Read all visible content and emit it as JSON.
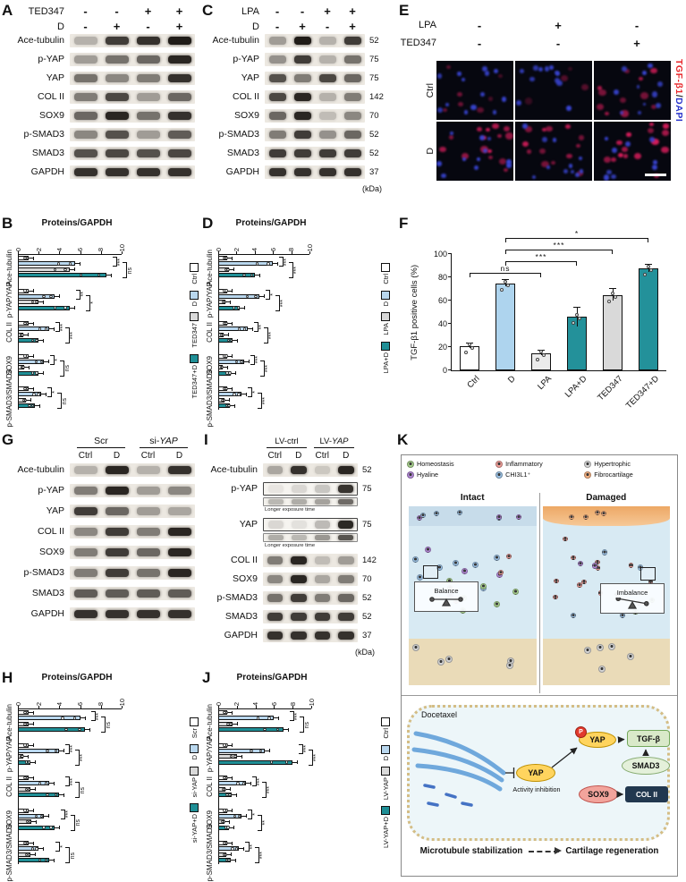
{
  "panel_labels": {
    "a": "A",
    "b": "B",
    "c": "C",
    "d": "D",
    "e": "E",
    "f": "F",
    "g": "G",
    "h": "H",
    "i": "I",
    "j": "J",
    "k": "K"
  },
  "blot_a": {
    "conditions": [
      {
        "name": "TED347",
        "values": [
          "-",
          "-",
          "+",
          "+"
        ]
      },
      {
        "name": "D",
        "values": [
          "-",
          "+",
          "-",
          "+"
        ]
      }
    ],
    "rows": [
      {
        "protein": "Ace-tubulin",
        "bands": [
          0.25,
          0.8,
          0.85,
          0.95
        ]
      },
      {
        "protein": "p-YAP",
        "bands": [
          0.35,
          0.55,
          0.6,
          0.9
        ]
      },
      {
        "protein": "YAP",
        "bands": [
          0.55,
          0.45,
          0.5,
          0.85
        ]
      },
      {
        "protein": "COL II",
        "bands": [
          0.5,
          0.75,
          0.35,
          0.6
        ]
      },
      {
        "protein": "SOX9",
        "bands": [
          0.6,
          0.9,
          0.55,
          0.85
        ]
      },
      {
        "protein": "p-SMAD3",
        "bands": [
          0.45,
          0.7,
          0.35,
          0.65
        ]
      },
      {
        "protein": "SMAD3",
        "bands": [
          0.7,
          0.75,
          0.7,
          0.75
        ]
      },
      {
        "protein": "GAPDH",
        "bands": [
          0.85,
          0.85,
          0.85,
          0.85
        ]
      }
    ]
  },
  "blot_c": {
    "conditions": [
      {
        "name": "LPA",
        "values": [
          "-",
          "-",
          "+",
          "+"
        ]
      },
      {
        "name": "D",
        "values": [
          "-",
          "+",
          "-",
          "+"
        ]
      }
    ],
    "rows": [
      {
        "protein": "Ace-tubulin",
        "bands": [
          0.35,
          0.95,
          0.25,
          0.8
        ]
      },
      {
        "protein": "p-YAP",
        "bands": [
          0.4,
          0.8,
          0.25,
          0.55
        ]
      },
      {
        "protein": "YAP",
        "bands": [
          0.7,
          0.5,
          0.75,
          0.6
        ]
      },
      {
        "protein": "COL II",
        "bands": [
          0.75,
          0.9,
          0.25,
          0.5
        ]
      },
      {
        "protein": "SOX9",
        "bands": [
          0.6,
          0.9,
          0.2,
          0.45
        ]
      },
      {
        "protein": "p-SMAD3",
        "bands": [
          0.5,
          0.8,
          0.4,
          0.6
        ]
      },
      {
        "protein": "SMAD3",
        "bands": [
          0.8,
          0.8,
          0.8,
          0.8
        ]
      },
      {
        "protein": "GAPDH",
        "bands": [
          0.85,
          0.85,
          0.85,
          0.85
        ]
      }
    ],
    "kda": [
      "52",
      "75",
      "75",
      "142",
      "70",
      "52",
      "52",
      "37"
    ],
    "kda_unit": "(kDa)"
  },
  "blot_g": {
    "groups": [
      {
        "name": "Scr"
      },
      {
        "prefix": "si-",
        "gene": "YAP"
      }
    ],
    "lanes": [
      "Ctrl",
      "D",
      "Ctrl",
      "D"
    ],
    "rows": [
      {
        "protein": "Ace-tubulin",
        "bands": [
          0.25,
          0.9,
          0.25,
          0.85
        ]
      },
      {
        "protein": "p-YAP",
        "bands": [
          0.5,
          0.9,
          0.35,
          0.45
        ]
      },
      {
        "protein": "YAP",
        "bands": [
          0.8,
          0.6,
          0.35,
          0.3
        ]
      },
      {
        "protein": "COL II",
        "bands": [
          0.45,
          0.8,
          0.5,
          0.9
        ]
      },
      {
        "protein": "SOX9",
        "bands": [
          0.5,
          0.8,
          0.6,
          0.9
        ]
      },
      {
        "protein": "p-SMAD3",
        "bands": [
          0.5,
          0.8,
          0.55,
          0.9
        ]
      },
      {
        "protein": "SMAD3",
        "bands": [
          0.65,
          0.65,
          0.65,
          0.65
        ]
      },
      {
        "protein": "GAPDH",
        "bands": [
          0.85,
          0.85,
          0.85,
          0.85
        ]
      }
    ]
  },
  "blot_i": {
    "groups": [
      {
        "name": "LV-ctrl"
      },
      {
        "prefix": "LV-",
        "gene": "YAP"
      }
    ],
    "lanes": [
      "Ctrl",
      "D",
      "Ctrl",
      "D"
    ],
    "rows": [
      {
        "protein": "Ace-tubulin",
        "bands": [
          0.3,
          0.85,
          0.15,
          0.9
        ]
      },
      {
        "protein": "p-YAP",
        "bands": [
          0.06,
          0.12,
          0.2,
          0.85
        ],
        "boxed": true,
        "sub": "Longer exposure time",
        "sub_bands": [
          0.25,
          0.3,
          0.35,
          0.6
        ]
      },
      {
        "protein": "YAP",
        "bands": [
          0.12,
          0.08,
          0.25,
          0.9
        ],
        "boxed": true,
        "sub": "Longer exposure time",
        "sub_bands": [
          0.3,
          0.25,
          0.4,
          0.7
        ]
      },
      {
        "protein": "COL II",
        "bands": [
          0.5,
          0.9,
          0.2,
          0.35
        ]
      },
      {
        "protein": "SOX9",
        "bands": [
          0.45,
          0.9,
          0.3,
          0.5
        ]
      },
      {
        "protein": "p-SMAD3",
        "bands": [
          0.55,
          0.8,
          0.5,
          0.6
        ]
      },
      {
        "protein": "SMAD3",
        "bands": [
          0.8,
          0.8,
          0.8,
          0.8
        ]
      },
      {
        "protein": "GAPDH",
        "bands": [
          0.85,
          0.85,
          0.85,
          0.85
        ]
      }
    ],
    "kda": [
      "52",
      "75",
      "75",
      "142",
      "70",
      "52",
      "52",
      "37"
    ],
    "kda_unit": "(kDa)"
  },
  "panel_e": {
    "conditions": [
      {
        "name": "LPA",
        "values": [
          "-",
          "+",
          "-"
        ]
      },
      {
        "name": "TED347",
        "values": [
          "-",
          "-",
          "+"
        ]
      }
    ],
    "row_labels": [
      "Ctrl",
      "D"
    ],
    "side_label": {
      "red": "TGF-β1",
      "sep": "/",
      "blue": "DAPI"
    }
  },
  "chart_data": [
    {
      "id": "B",
      "type": "bar",
      "orientation": "horizontal",
      "title": "Proteins/GAPDH",
      "categories": [
        "Ace-tubulin",
        "p-YAP/YAP",
        "COL II",
        "SOX9",
        "p-SMAD3/SMAD3"
      ],
      "conditions": [
        "Ctrl",
        "D",
        "TED347",
        "TED347+D"
      ],
      "condition_colors": [
        "#ffffff",
        "#b9d7ee",
        "#d9d9d9",
        "#1f8f96"
      ],
      "xlim": [
        0,
        10
      ],
      "xticks": [
        0,
        2,
        4,
        6,
        8,
        10
      ],
      "values": [
        [
          1,
          5.5,
          5,
          8.5
        ],
        [
          1,
          3.5,
          2,
          5
        ],
        [
          1,
          3,
          0.5,
          2
        ],
        [
          1,
          2.5,
          0.6,
          2
        ],
        [
          1,
          2.2,
          0.8,
          1.6
        ]
      ],
      "sig": [
        [
          {
            "a": 0,
            "b": 1,
            "label": "***"
          },
          {
            "a": 1,
            "b": 3,
            "label": "ns"
          }
        ],
        [
          {
            "a": 0,
            "b": 1,
            "label": "**"
          },
          {
            "a": 1,
            "b": 3,
            "label": "*"
          }
        ],
        [
          {
            "a": 0,
            "b": 1,
            "label": "***"
          },
          {
            "a": 1,
            "b": 3,
            "label": "***"
          }
        ],
        [
          {
            "a": 0,
            "b": 1,
            "label": "*"
          },
          {
            "a": 1,
            "b": 3,
            "label": "ns"
          }
        ],
        [
          {
            "a": 0,
            "b": 1,
            "label": "*"
          },
          {
            "a": 1,
            "b": 3,
            "label": "ns"
          }
        ]
      ]
    },
    {
      "id": "D",
      "type": "bar",
      "orientation": "horizontal",
      "title": "Proteins/GAPDH",
      "categories": [
        "Ace-tubulin",
        "p-YAP/YAP",
        "COL II",
        "SOX9",
        "p-SMAD3/SMAD3"
      ],
      "conditions": [
        "Ctrl",
        "D",
        "LPA",
        "LPA+D"
      ],
      "condition_colors": [
        "#ffffff",
        "#b9d7ee",
        "#d9d9d9",
        "#1f8f96"
      ],
      "xlim": [
        0,
        10
      ],
      "xticks": [
        0,
        2,
        4,
        6,
        8,
        10
      ],
      "values": [
        [
          1,
          6,
          1.2,
          4
        ],
        [
          1,
          4.5,
          0.8,
          2.4
        ],
        [
          1,
          3.2,
          0.6,
          1.6
        ],
        [
          1,
          2.8,
          0.5,
          1.4
        ],
        [
          1,
          2.5,
          0.7,
          1.3
        ]
      ],
      "sig": [
        [
          {
            "a": 0,
            "b": 1,
            "label": "***"
          },
          {
            "a": 1,
            "b": 3,
            "label": "***"
          }
        ],
        [
          {
            "a": 0,
            "b": 1,
            "label": "*"
          },
          {
            "a": 1,
            "b": 3,
            "label": "***"
          }
        ],
        [
          {
            "a": 0,
            "b": 1,
            "label": "**"
          },
          {
            "a": 1,
            "b": 3,
            "label": "***"
          }
        ],
        [
          {
            "a": 0,
            "b": 1,
            "label": "***"
          },
          {
            "a": 1,
            "b": 3,
            "label": "***"
          }
        ],
        [
          {
            "a": 0,
            "b": 1,
            "label": "*"
          },
          {
            "a": 1,
            "b": 3,
            "label": "***"
          }
        ]
      ]
    },
    {
      "id": "F",
      "type": "bar",
      "orientation": "vertical",
      "ylabel": "TGF-β1 positive cells (%)",
      "categories": [
        "Ctrl",
        "D",
        "LPA",
        "LPA+D",
        "TED347",
        "TED347+D"
      ],
      "values": [
        21,
        75,
        15,
        46,
        65,
        88
      ],
      "errors": [
        2,
        3,
        2,
        8,
        5,
        3
      ],
      "ylim": [
        0,
        100
      ],
      "yticks": [
        0,
        20,
        40,
        60,
        80,
        100
      ],
      "bar_colors": [
        "#ffffff",
        "#aed4ee",
        "#ececec",
        "#23919a",
        "#d9d9d9",
        "#23919a"
      ],
      "sig": [
        {
          "from": 0,
          "to": 2,
          "label": "ns",
          "level": 0
        },
        {
          "from": 1,
          "to": 3,
          "label": "***",
          "level": 1
        },
        {
          "from": 1,
          "to": 4,
          "label": "***",
          "level": 2
        },
        {
          "from": 1,
          "to": 5,
          "label": "*",
          "level": 3
        }
      ]
    },
    {
      "id": "H",
      "type": "bar",
      "orientation": "horizontal",
      "title": "Proteins/GAPDH",
      "categories": [
        "Ace-tubulin",
        "p-YAP/YAP",
        "COL II",
        "SOX9",
        "p-SMAD3/SMAD3"
      ],
      "conditions": [
        "Scr",
        "D",
        "si-YAP",
        "si-YAP+D"
      ],
      "condition_colors": [
        "#ffffff",
        "#b9d7ee",
        "#d9d9d9",
        "#1f8f96"
      ],
      "xlim": [
        0,
        10
      ],
      "xticks": [
        0,
        2,
        4,
        6,
        8,
        10
      ],
      "values": [
        [
          1,
          6,
          1,
          6.5
        ],
        [
          1,
          4,
          0.5,
          1.2
        ],
        [
          1,
          3,
          1.2,
          4
        ],
        [
          1,
          2.5,
          1.3,
          3.5
        ],
        [
          1,
          2,
          1.2,
          3
        ]
      ],
      "sig": [
        [
          {
            "a": 0,
            "b": 1,
            "label": "***"
          },
          {
            "a": 1,
            "b": 3,
            "label": "ns"
          }
        ],
        [
          {
            "a": 0,
            "b": 1,
            "label": "***"
          },
          {
            "a": 1,
            "b": 3,
            "label": "***"
          }
        ],
        [
          {
            "a": 0,
            "b": 1,
            "label": "***"
          },
          {
            "a": 1,
            "b": 3,
            "label": "ns"
          }
        ],
        [
          {
            "a": 0,
            "b": 1,
            "label": "***"
          },
          {
            "a": 1,
            "b": 3,
            "label": "ns"
          }
        ],
        [
          {
            "a": 0,
            "b": 1,
            "label": "*"
          },
          {
            "a": 1,
            "b": 3,
            "label": "ns"
          }
        ]
      ]
    },
    {
      "id": "J",
      "type": "bar",
      "orientation": "horizontal",
      "title": "Proteins/GAPDH",
      "categories": [
        "Ace-tubulin",
        "p-YAP/YAP",
        "COL II",
        "SOX9",
        "p-SMAD3/SMAD3"
      ],
      "conditions": [
        "Ctrl",
        "D",
        "LV-YAP",
        "LV-YAP+D"
      ],
      "condition_colors": [
        "#ffffff",
        "#b9d7ee",
        "#d9d9d9",
        "#1f8f96"
      ],
      "xlim": [
        0,
        10
      ],
      "xticks": [
        0,
        2,
        4,
        6,
        8,
        10
      ],
      "values": [
        [
          1,
          6,
          1.5,
          7
        ],
        [
          1,
          5,
          2,
          8
        ],
        [
          1,
          3,
          0.8,
          1.4
        ],
        [
          1,
          2.5,
          0.7,
          1.2
        ],
        [
          1,
          2.2,
          0.9,
          1.3
        ]
      ],
      "sig": [
        [
          {
            "a": 0,
            "b": 1,
            "label": "***"
          },
          {
            "a": 1,
            "b": 3,
            "label": "ns"
          }
        ],
        [
          {
            "a": 0,
            "b": 1,
            "label": "***"
          },
          {
            "a": 1,
            "b": 3,
            "label": "***"
          }
        ],
        [
          {
            "a": 0,
            "b": 1,
            "label": "***"
          },
          {
            "a": 1,
            "b": 3,
            "label": "***"
          }
        ],
        [
          {
            "a": 0,
            "b": 1,
            "label": "*"
          },
          {
            "a": 1,
            "b": 3,
            "label": "**"
          }
        ],
        [
          {
            "a": 0,
            "b": 1,
            "label": "**"
          },
          {
            "a": 1,
            "b": 3,
            "label": "***"
          }
        ]
      ]
    }
  ],
  "panel_k": {
    "legend": [
      {
        "label": "Homeostasis",
        "color": "#a9d18e"
      },
      {
        "label": "Inflammatory",
        "color": "#f2a09a"
      },
      {
        "label": "Hypertrophic",
        "color": "#d9d9d9"
      },
      {
        "label": "Hyaline",
        "color": "#b48ad8"
      },
      {
        "label": "CHI3L1⁺",
        "color": "#9dc3e6"
      },
      {
        "label": "Fibrocartilage",
        "color": "#f4b183"
      }
    ],
    "intact_title": "Intact",
    "damaged_title": "Damaged",
    "balance_label": "Balance",
    "imbalance_label": "Imbalance",
    "docetaxel": "Docetaxel",
    "yap": "YAP",
    "activity_inhibition": "Activity inhibition",
    "phospho": "P",
    "p_yap": "YAP",
    "tgfb": "TGF-β",
    "smad3": "SMAD3",
    "sox9": "SOX9",
    "col2": "COL II",
    "microtubule_stabilization": "Microtubule stabilization",
    "cartilage_regeneration": "Cartilage regeneration"
  }
}
